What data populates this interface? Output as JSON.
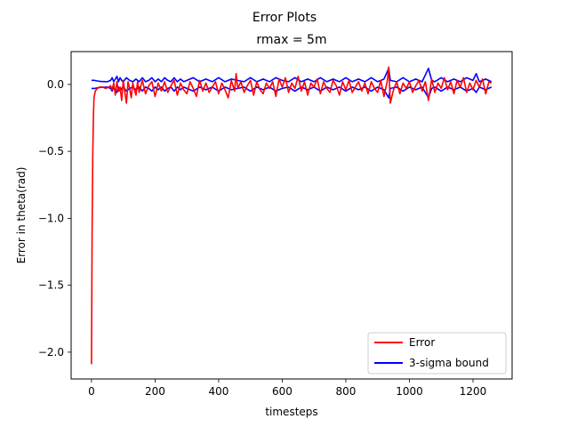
{
  "figure": {
    "suptitle": "Error Plots"
  },
  "chart_data": {
    "type": "line",
    "title": "rmax = 5m",
    "xlabel": "timesteps",
    "ylabel": "Error in theta(rad)",
    "xlim": [
      -64,
      1323
    ],
    "ylim": [
      -2.2,
      0.245
    ],
    "xticks": [
      0,
      200,
      400,
      600,
      800,
      1000,
      1200
    ],
    "yticks": [
      0.0,
      -0.5,
      -1.0,
      -1.5,
      -2.0
    ],
    "xtick_labels": [
      "0",
      "200",
      "400",
      "600",
      "800",
      "1000",
      "1200"
    ],
    "ytick_labels": [
      "0.0",
      "−0.5",
      "−1.0",
      "−1.5",
      "−2.0"
    ],
    "grid": false,
    "legend": "lower-right",
    "series": [
      {
        "name": "Error",
        "color": "#ff0000",
        "x": [
          0,
          2,
          4,
          6,
          8,
          12,
          18,
          25,
          35,
          45,
          55,
          60,
          65,
          70,
          75,
          80,
          85,
          90,
          95,
          100,
          105,
          110,
          115,
          120,
          125,
          130,
          135,
          140,
          145,
          150,
          160,
          170,
          180,
          190,
          200,
          210,
          220,
          230,
          240,
          250,
          260,
          270,
          280,
          290,
          300,
          310,
          320,
          330,
          340,
          350,
          360,
          370,
          380,
          390,
          400,
          410,
          420,
          430,
          440,
          450,
          455,
          460,
          470,
          480,
          490,
          500,
          510,
          520,
          530,
          540,
          550,
          560,
          570,
          580,
          590,
          600,
          610,
          620,
          630,
          640,
          650,
          660,
          670,
          680,
          690,
          700,
          710,
          720,
          730,
          740,
          750,
          760,
          770,
          780,
          790,
          800,
          810,
          820,
          830,
          840,
          850,
          860,
          870,
          880,
          890,
          900,
          910,
          920,
          930,
          935,
          940,
          950,
          960,
          970,
          980,
          990,
          1000,
          1010,
          1020,
          1030,
          1040,
          1050,
          1060,
          1070,
          1080,
          1090,
          1100,
          1110,
          1120,
          1130,
          1140,
          1150,
          1160,
          1170,
          1180,
          1190,
          1200,
          1210,
          1220,
          1230,
          1240,
          1250,
          1258
        ],
        "y": [
          -2.09,
          -1.1,
          -0.55,
          -0.25,
          -0.1,
          -0.05,
          -0.03,
          -0.02,
          -0.02,
          -0.03,
          -0.02,
          -0.01,
          -0.04,
          0.01,
          -0.08,
          0.02,
          -0.05,
          -0.02,
          -0.12,
          0.03,
          -0.06,
          -0.14,
          0.02,
          -0.03,
          -0.1,
          0.01,
          -0.04,
          -0.08,
          0.02,
          -0.06,
          0.03,
          -0.07,
          -0.01,
          0.02,
          -0.09,
          0.01,
          -0.05,
          0.02,
          -0.06,
          -0.01,
          0.03,
          -0.08,
          0.01,
          -0.04,
          -0.07,
          0.02,
          -0.03,
          -0.09,
          0.03,
          -0.05,
          0.01,
          -0.06,
          -0.02,
          0.02,
          -0.07,
          0.01,
          -0.04,
          -0.1,
          0.03,
          -0.05,
          0.08,
          -0.03,
          0.02,
          -0.06,
          -0.01,
          0.03,
          -0.08,
          0.02,
          -0.04,
          -0.07,
          0.01,
          -0.03,
          0.02,
          -0.09,
          0.04,
          -0.02,
          0.05,
          -0.06,
          0.01,
          -0.03,
          0.06,
          -0.05,
          0.02,
          -0.08,
          0.01,
          -0.02,
          0.04,
          -0.07,
          0.02,
          -0.03,
          -0.06,
          0.03,
          -0.01,
          -0.08,
          0.02,
          -0.04,
          0.03,
          -0.06,
          -0.02,
          0.02,
          -0.05,
          0.01,
          -0.07,
          0.02,
          -0.03,
          -0.06,
          0.03,
          -0.09,
          0.02,
          0.13,
          -0.14,
          -0.04,
          0.02,
          -0.07,
          0.01,
          -0.03,
          0.02,
          -0.06,
          -0.01,
          0.03,
          -0.05,
          0.02,
          -0.12,
          0.04,
          -0.06,
          0.01,
          -0.03,
          0.05,
          -0.04,
          0.02,
          -0.07,
          0.03,
          -0.02,
          0.05,
          -0.06,
          0.01,
          -0.04,
          0.03,
          -0.02,
          0.04,
          -0.07,
          0.02,
          0.01
        ]
      },
      {
        "name": "3-sigma bound",
        "color": "#0000ff",
        "x": [
          0,
          5,
          10,
          20,
          30,
          40,
          50,
          60,
          65,
          70,
          75,
          80,
          85,
          90,
          95,
          100,
          110,
          120,
          130,
          140,
          150,
          160,
          170,
          180,
          190,
          200,
          210,
          220,
          230,
          240,
          250,
          260,
          270,
          280,
          290,
          300,
          320,
          340,
          360,
          380,
          400,
          420,
          440,
          460,
          480,
          500,
          520,
          540,
          560,
          580,
          600,
          620,
          640,
          660,
          680,
          700,
          720,
          740,
          760,
          780,
          800,
          820,
          840,
          860,
          880,
          900,
          920,
          935,
          940,
          960,
          980,
          1000,
          1020,
          1040,
          1060,
          1070,
          1080,
          1100,
          1120,
          1140,
          1160,
          1180,
          1200,
          1210,
          1220,
          1240,
          1258
        ],
        "y": [
          0.03,
          0.03,
          0.03,
          0.025,
          0.022,
          0.021,
          0.02,
          0.03,
          0.05,
          0.02,
          0.04,
          0.06,
          0.02,
          0.05,
          0.03,
          0.02,
          0.05,
          0.03,
          0.02,
          0.04,
          0.02,
          0.05,
          0.02,
          0.03,
          0.05,
          0.02,
          0.04,
          0.02,
          0.05,
          0.03,
          0.02,
          0.05,
          0.02,
          0.04,
          0.02,
          0.03,
          0.05,
          0.02,
          0.04,
          0.02,
          0.05,
          0.02,
          0.04,
          0.03,
          0.02,
          0.05,
          0.02,
          0.04,
          0.02,
          0.05,
          0.03,
          0.02,
          0.05,
          0.02,
          0.04,
          0.02,
          0.05,
          0.02,
          0.04,
          0.02,
          0.05,
          0.02,
          0.04,
          0.02,
          0.05,
          0.02,
          0.04,
          0.12,
          0.03,
          0.02,
          0.05,
          0.02,
          0.04,
          0.02,
          0.12,
          0.03,
          0.02,
          0.05,
          0.02,
          0.04,
          0.02,
          0.05,
          0.03,
          0.08,
          0.02,
          0.04,
          0.02
        ]
      },
      {
        "name": "",
        "color": "#0000ff",
        "x": [
          0,
          5,
          10,
          20,
          30,
          40,
          50,
          60,
          65,
          70,
          75,
          80,
          85,
          90,
          95,
          100,
          110,
          120,
          130,
          140,
          150,
          160,
          170,
          180,
          190,
          200,
          210,
          220,
          230,
          240,
          250,
          260,
          270,
          280,
          290,
          300,
          320,
          340,
          360,
          380,
          400,
          420,
          440,
          460,
          480,
          500,
          520,
          540,
          560,
          580,
          600,
          620,
          640,
          660,
          680,
          700,
          720,
          740,
          760,
          780,
          800,
          820,
          840,
          860,
          880,
          900,
          920,
          935,
          940,
          960,
          980,
          1000,
          1020,
          1040,
          1060,
          1070,
          1080,
          1100,
          1120,
          1140,
          1160,
          1180,
          1200,
          1210,
          1220,
          1240,
          1258
        ],
        "y": [
          -0.03,
          -0.03,
          -0.03,
          -0.025,
          -0.022,
          -0.021,
          -0.02,
          -0.03,
          -0.05,
          -0.02,
          -0.04,
          -0.06,
          -0.02,
          -0.05,
          -0.03,
          -0.02,
          -0.05,
          -0.03,
          -0.02,
          -0.04,
          -0.02,
          -0.05,
          -0.02,
          -0.03,
          -0.05,
          -0.02,
          -0.04,
          -0.02,
          -0.05,
          -0.03,
          -0.02,
          -0.05,
          -0.02,
          -0.04,
          -0.02,
          -0.03,
          -0.05,
          -0.02,
          -0.04,
          -0.02,
          -0.05,
          -0.02,
          -0.04,
          -0.03,
          -0.02,
          -0.05,
          -0.02,
          -0.04,
          -0.02,
          -0.05,
          -0.03,
          -0.02,
          -0.05,
          -0.02,
          -0.04,
          -0.02,
          -0.05,
          -0.02,
          -0.04,
          -0.02,
          -0.05,
          -0.02,
          -0.04,
          -0.02,
          -0.05,
          -0.02,
          -0.04,
          -0.1,
          -0.03,
          -0.02,
          -0.05,
          -0.02,
          -0.04,
          -0.02,
          -0.1,
          -0.03,
          -0.02,
          -0.05,
          -0.02,
          -0.04,
          -0.02,
          -0.05,
          -0.03,
          -0.06,
          -0.02,
          -0.04,
          -0.02
        ]
      }
    ]
  }
}
